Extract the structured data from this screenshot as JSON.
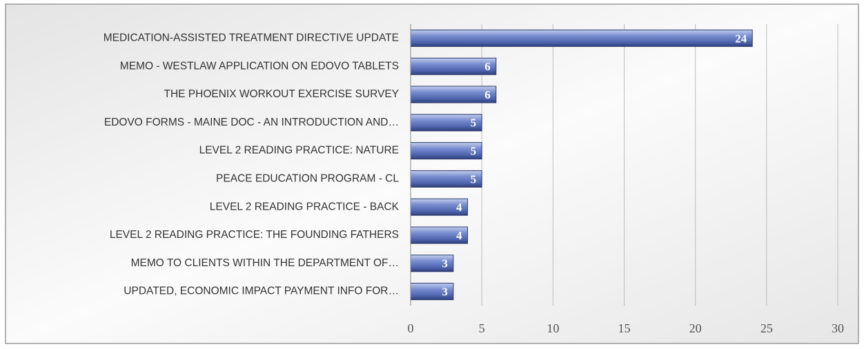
{
  "chart_data": {
    "type": "bar",
    "orientation": "horizontal",
    "categories": [
      "MEDICATION-ASSISTED TREATMENT DIRECTIVE UPDATE",
      "MEMO - WESTLAW APPLICATION ON EDOVO TABLETS",
      "THE PHOENIX WORKOUT EXERCISE SURVEY",
      "EDOVO FORMS - MAINE DOC - AN INTRODUCTION AND…",
      "LEVEL 2 READING PRACTICE: NATURE",
      "PEACE EDUCATION PROGRAM - CL",
      "LEVEL 2 READING PRACTICE - BACK",
      "LEVEL 2 READING PRACTICE: THE FOUNDING FATHERS",
      "MEMO TO CLIENTS WITHIN THE DEPARTMENT OF…",
      "UPDATED, ECONOMIC IMPACT PAYMENT INFO FOR…"
    ],
    "values": [
      24,
      6,
      6,
      5,
      5,
      5,
      4,
      4,
      3,
      3
    ],
    "color": "#5b73b8",
    "xlim": [
      0,
      30
    ],
    "xticks": [
      0,
      5,
      10,
      15,
      20,
      25,
      30
    ],
    "grid": true
  }
}
